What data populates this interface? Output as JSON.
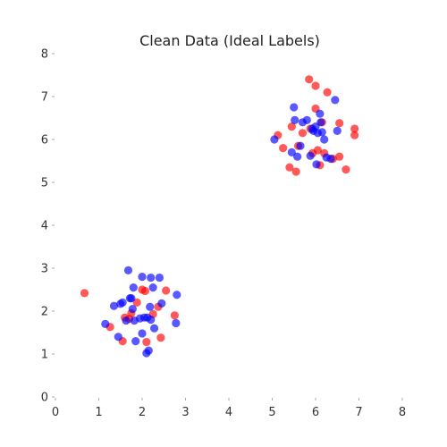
{
  "chart_data": {
    "type": "scatter",
    "title": "Clean Data (Ideal Labels)",
    "xlabel": "",
    "ylabel": "",
    "xlim": [
      0,
      8
    ],
    "ylim": [
      0,
      8
    ],
    "xticks": [
      "0",
      "1",
      "2",
      "3",
      "4",
      "5",
      "6",
      "7",
      "8"
    ],
    "yticks": [
      "0",
      "1",
      "2",
      "3",
      "4",
      "5",
      "6",
      "7",
      "8"
    ],
    "grid": false,
    "legend": "none",
    "series": [
      {
        "color": "#ff0000",
        "points": [
          [
            0.67,
            2.42
          ],
          [
            1.26,
            1.63
          ],
          [
            1.55,
            1.3
          ],
          [
            1.6,
            1.85
          ],
          [
            1.7,
            1.82
          ],
          [
            1.75,
            1.95
          ],
          [
            1.88,
            2.2
          ],
          [
            2.0,
            2.5
          ],
          [
            2.07,
            2.47
          ],
          [
            2.1,
            1.28
          ],
          [
            2.25,
            1.93
          ],
          [
            2.37,
            2.1
          ],
          [
            2.43,
            1.38
          ],
          [
            2.55,
            2.48
          ],
          [
            2.75,
            1.9
          ],
          [
            5.13,
            6.1
          ],
          [
            5.25,
            5.8
          ],
          [
            5.4,
            5.35
          ],
          [
            5.45,
            6.3
          ],
          [
            5.55,
            5.25
          ],
          [
            5.6,
            5.85
          ],
          [
            5.7,
            6.15
          ],
          [
            5.85,
            7.4
          ],
          [
            5.88,
            6.25
          ],
          [
            5.93,
            5.68
          ],
          [
            6.0,
            7.25
          ],
          [
            6.0,
            6.72
          ],
          [
            6.05,
            5.75
          ],
          [
            6.1,
            5.4
          ],
          [
            6.15,
            6.4
          ],
          [
            6.2,
            5.68
          ],
          [
            6.27,
            7.1
          ],
          [
            6.4,
            5.55
          ],
          [
            6.55,
            6.38
          ],
          [
            6.55,
            5.6
          ],
          [
            6.7,
            5.3
          ],
          [
            6.9,
            6.25
          ],
          [
            6.9,
            6.1
          ]
        ]
      },
      {
        "color": "#0000ff",
        "points": [
          [
            1.15,
            1.7
          ],
          [
            1.35,
            2.12
          ],
          [
            1.45,
            1.4
          ],
          [
            1.5,
            2.17
          ],
          [
            1.55,
            2.2
          ],
          [
            1.63,
            1.78
          ],
          [
            1.68,
            2.95
          ],
          [
            1.72,
            2.3
          ],
          [
            1.75,
            2.3
          ],
          [
            1.78,
            2.05
          ],
          [
            1.8,
            2.55
          ],
          [
            1.82,
            1.78
          ],
          [
            1.85,
            1.3
          ],
          [
            1.95,
            1.83
          ],
          [
            2.0,
            2.8
          ],
          [
            2.0,
            1.48
          ],
          [
            2.05,
            1.85
          ],
          [
            2.1,
            1.02
          ],
          [
            2.12,
            1.85
          ],
          [
            2.15,
            1.08
          ],
          [
            2.18,
            2.1
          ],
          [
            2.2,
            1.8
          ],
          [
            2.25,
            2.55
          ],
          [
            2.28,
            1.6
          ],
          [
            2.4,
            2.78
          ],
          [
            2.45,
            2.18
          ],
          [
            2.78,
            1.72
          ],
          [
            2.8,
            2.38
          ],
          [
            2.2,
            2.78
          ],
          [
            5.05,
            6.0
          ],
          [
            5.45,
            5.7
          ],
          [
            5.5,
            6.75
          ],
          [
            5.52,
            6.45
          ],
          [
            5.58,
            5.6
          ],
          [
            5.65,
            5.85
          ],
          [
            5.7,
            6.4
          ],
          [
            5.8,
            6.45
          ],
          [
            5.88,
            5.62
          ],
          [
            5.95,
            6.2
          ],
          [
            6.0,
            6.3
          ],
          [
            6.02,
            5.42
          ],
          [
            6.1,
            6.6
          ],
          [
            6.12,
            6.4
          ],
          [
            6.15,
            6.17
          ],
          [
            6.2,
            6.0
          ],
          [
            6.25,
            5.58
          ],
          [
            6.35,
            5.55
          ],
          [
            6.45,
            6.92
          ],
          [
            6.5,
            6.2
          ],
          [
            5.92,
            6.25
          ],
          [
            6.05,
            6.15
          ]
        ]
      }
    ]
  }
}
